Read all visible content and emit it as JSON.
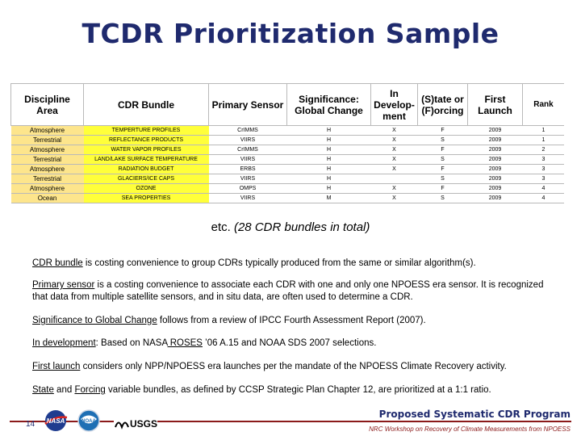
{
  "title": "TCDR Prioritization Sample",
  "table": {
    "headers": [
      "Discipline Area",
      "CDR Bundle",
      "Primary Sensor",
      "Significance: Global Change",
      "In Develop-ment",
      "(S)tate or (F)orcing",
      "First Launch",
      "Rank"
    ],
    "rows": [
      {
        "discipline": "Atmosphere",
        "bundle": "TEMPERTURE PROFILES",
        "sensor": "CrIMMS",
        "significance": "H",
        "dev": "X",
        "sf": "F",
        "launch": "2009",
        "rank": "1"
      },
      {
        "discipline": "Terrestrial",
        "bundle": "REFLECTANCE PRODUCTS",
        "sensor": "VIIRS",
        "significance": "H",
        "dev": "X",
        "sf": "S",
        "launch": "2009",
        "rank": "1"
      },
      {
        "discipline": "Atmosphere",
        "bundle": "WATER VAPOR PROFILES",
        "sensor": "CrIMMS",
        "significance": "H",
        "dev": "X",
        "sf": "F",
        "launch": "2009",
        "rank": "2"
      },
      {
        "discipline": "Terrestrial",
        "bundle": "LAND/LAKE SURFACE TEMPERATURE",
        "sensor": "VIIRS",
        "significance": "H",
        "dev": "X",
        "sf": "S",
        "launch": "2009",
        "rank": "3"
      },
      {
        "discipline": "Atmosphere",
        "bundle": "RADIATION BUDGET",
        "sensor": "ERBS",
        "significance": "H",
        "dev": "X",
        "sf": "F",
        "launch": "2009",
        "rank": "3"
      },
      {
        "discipline": "Terrestrial",
        "bundle": "GLACIERS/ICE CAPS",
        "sensor": "VIIRS",
        "significance": "H",
        "dev": "",
        "sf": "S",
        "launch": "2009",
        "rank": "3"
      },
      {
        "discipline": "Atmosphere",
        "bundle": "OZONE",
        "sensor": "OMPS",
        "significance": "H",
        "dev": "X",
        "sf": "F",
        "launch": "2009",
        "rank": "4"
      },
      {
        "discipline": "Ocean",
        "bundle": "SEA PROPERTIES",
        "sensor": "VIIRS",
        "significance": "M",
        "dev": "X",
        "sf": "S",
        "launch": "2009",
        "rank": "4"
      }
    ]
  },
  "etc": {
    "lead": "etc.",
    "text": "(28 CDR bundles in total)"
  },
  "notes": {
    "bundle": {
      "term": "CDR bundle",
      "text": " is costing convenience to group CDRs typically produced from the same or similar algorithm(s)."
    },
    "sensor": {
      "term": "Primary sensor",
      "text": " is a costing convenience to associate each CDR with one and only one NPOESS era sensor.  It is recognized that data from multiple satellite sensors, and in situ data, are often used to determine a CDR."
    },
    "significance": {
      "term": "Significance to Global Change",
      "text": " follows from a review of IPCC Fourth Assessment Report (2007)."
    },
    "development": {
      "term": "In development",
      "mid": ": Based on NASA",
      "term2": " ROSES",
      "text": " ’06 A.15 and NOAA SDS 2007 selections."
    },
    "launch": {
      "term": "First launch",
      "text": " considers only NPP/NPOESS era launches per the mandate of the NPOESS Climate Recovery activity."
    },
    "state": {
      "term": "State",
      "and": " and ",
      "term2": "Forcing",
      "text": " variable bundles, as defined by CCSP Strategic Plan Chapter 12, are prioritized at a 1:1 ratio."
    }
  },
  "footer": {
    "slide_number": "14",
    "program": "Proposed Systematic CDR Program",
    "subtitle": "NRC Workshop on Recovery of Climate Measurements from NPOESS",
    "logos": {
      "nasa": "NASA",
      "noaa": "NOAA",
      "usgs": "USGS"
    }
  },
  "colors": {
    "title": "#1f2a6e",
    "discipline_fill": "#fde58c",
    "bundle_fill": "#ffff3a",
    "accent": "#8b1a1a"
  }
}
